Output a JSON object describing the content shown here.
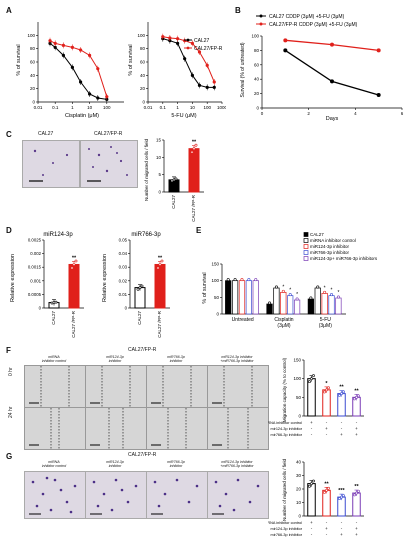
{
  "panel_labels": {
    "A": "A",
    "B": "B",
    "C": "C",
    "D": "D",
    "E": "E",
    "F": "F",
    "G": "G"
  },
  "colors": {
    "black": "#000000",
    "red": "#e0201b",
    "blue": "#3b4bd1",
    "purple": "#7a3bb5",
    "gray": "#888888"
  },
  "panelA": {
    "left": {
      "ylabel": "% of survival",
      "xlabel": "Cisplatin (μM)",
      "yticks": [
        "0",
        "20",
        "40",
        "60",
        "80",
        "100"
      ],
      "xticks": [
        "0.01",
        "0.1",
        "1",
        "10",
        "100"
      ]
    },
    "right": {
      "ylabel": "% of survival",
      "xlabel": "5-FU (μM)",
      "yticks": [
        "0",
        "20",
        "40",
        "60",
        "80",
        "100"
      ],
      "xticks": [
        "0.01",
        "0.1",
        "1",
        "10",
        "100",
        "1000"
      ],
      "legend": [
        {
          "label": "CAL27",
          "color": "#000000"
        },
        {
          "label": "CAL27/FP-R",
          "color": "#e0201b"
        }
      ]
    }
  },
  "chart_data": [
    {
      "type": "line",
      "panel": "A-left",
      "xlabel": "Cisplatin (μM)",
      "ylabel": "% of survival",
      "xscale": "log",
      "xlim": [
        0.01,
        1000
      ],
      "ylim": [
        0,
        120
      ],
      "series": [
        {
          "name": "CAL27",
          "color": "#000000",
          "x": [
            0.05,
            0.1,
            0.3,
            1,
            3,
            10,
            30,
            100
          ],
          "y": [
            88,
            82,
            70,
            52,
            30,
            12,
            6,
            4
          ]
        },
        {
          "name": "CAL27/FP-R",
          "color": "#e0201b",
          "x": [
            0.05,
            0.1,
            0.3,
            1,
            3,
            10,
            30,
            100
          ],
          "y": [
            92,
            88,
            85,
            82,
            78,
            70,
            50,
            8
          ]
        }
      ]
    },
    {
      "type": "line",
      "panel": "A-right",
      "xlabel": "5-FU (μM)",
      "ylabel": "% of survival",
      "xscale": "log",
      "xlim": [
        0.01,
        1000
      ],
      "ylim": [
        0,
        120
      ],
      "series": [
        {
          "name": "CAL27",
          "color": "#000000",
          "x": [
            0.1,
            0.3,
            1,
            3,
            10,
            30,
            100,
            300
          ],
          "y": [
            95,
            92,
            88,
            65,
            40,
            25,
            22,
            22
          ]
        },
        {
          "name": "CAL27/FP-R",
          "color": "#e0201b",
          "x": [
            0.1,
            0.3,
            1,
            3,
            10,
            30,
            100,
            300
          ],
          "y": [
            98,
            96,
            95,
            92,
            88,
            75,
            55,
            30
          ]
        }
      ]
    },
    {
      "type": "line",
      "panel": "B",
      "xlabel": "Days",
      "ylabel": "Survival (% of untreated)",
      "xlim": [
        0,
        6
      ],
      "ylim": [
        0,
        100
      ],
      "xticks": [
        "0",
        "2",
        "4",
        "6"
      ],
      "yticks": [
        "0",
        "20",
        "40",
        "60",
        "80",
        "100"
      ],
      "series": [
        {
          "name": "CAL27 CDDP (3μM) +5-FU (3μM)",
          "color": "#000000",
          "x": [
            1,
            3,
            5
          ],
          "y": [
            80,
            37,
            18
          ]
        },
        {
          "name": "CAL27/FP-R CDDP (3μM) +5-FU (3μM)",
          "color": "#e0201b",
          "x": [
            1,
            3,
            5
          ],
          "y": [
            94,
            88,
            80
          ]
        }
      ]
    },
    {
      "type": "bar",
      "panel": "C",
      "ylabel": "Number of migrated cells / field",
      "ylim": [
        0,
        15
      ],
      "yticks": [
        "0",
        "5",
        "10",
        "15"
      ],
      "categories": [
        "CAL27",
        "CAL27 /FP-R"
      ],
      "values": [
        3.5,
        12.5
      ],
      "sig": [
        "",
        "**"
      ]
    },
    {
      "type": "bar",
      "panel": "D-left",
      "title": "miR124-3p",
      "ylabel": "Relative expression",
      "ylim": [
        0,
        0.0025
      ],
      "yticks": [
        "0",
        "0.0005",
        "0.001",
        "0.0015",
        "0.002",
        "0.0025"
      ],
      "categories": [
        "CAL27",
        "CAL27 /FP-R"
      ],
      "values": [
        0.0002,
        0.0016
      ],
      "sig": [
        "",
        "**"
      ]
    },
    {
      "type": "bar",
      "panel": "D-right",
      "title": "miR766-3p",
      "ylabel": "Relative expression",
      "ylim": [
        0,
        0.05
      ],
      "yticks": [
        "0",
        "0.01",
        "0.02",
        "0.03",
        "0.04",
        "0.05"
      ],
      "categories": [
        "CAL27",
        "CAL27 /FP-R"
      ],
      "values": [
        0.015,
        0.032
      ],
      "sig": [
        "",
        "**"
      ]
    },
    {
      "type": "bar",
      "panel": "E",
      "ylabel": "% of survival",
      "ylim": [
        0,
        150
      ],
      "yticks": [
        "0",
        "50",
        "100",
        "150"
      ],
      "categories": [
        "Untreated",
        "Cisplatin (3μM)",
        "5-FU (3μM)"
      ],
      "series": [
        {
          "name": "CAL27",
          "color": "#000000",
          "fill": "#000000",
          "values": [
            100,
            30,
            45
          ]
        },
        {
          "name": "miRNA inhibitor control",
          "color": "#000000",
          "fill": "#ffffff",
          "values": [
            100,
            78,
            78
          ]
        },
        {
          "name": "miR124-3p inhibitor",
          "color": "#e0201b",
          "fill": "#ffffff",
          "values": [
            100,
            65,
            62
          ]
        },
        {
          "name": "miR766-3p inhibitor",
          "color": "#3b4bd1",
          "fill": "#ffffff",
          "values": [
            100,
            55,
            55
          ]
        },
        {
          "name": "miR124-3p+ miR766-3p inhibitors",
          "color": "#7a3bb5",
          "fill": "#ffffff",
          "values": [
            100,
            42,
            48
          ]
        }
      ],
      "sig": [
        [
          "",
          "",
          "",
          "",
          ""
        ],
        [
          "",
          "",
          "*",
          "*",
          "*"
        ],
        [
          "",
          "",
          "*",
          "*",
          "*"
        ]
      ]
    },
    {
      "type": "bar",
      "panel": "F",
      "ylabel": "Migration capacity (% to control)",
      "ylim": [
        0,
        150
      ],
      "yticks": [
        "0",
        "50",
        "100",
        "150"
      ],
      "categories": [
        "1",
        "2",
        "3",
        "4"
      ],
      "values": [
        100,
        70,
        60,
        50
      ],
      "colors": [
        "#000000",
        "#e0201b",
        "#3b4bd1",
        "#7a3bb5"
      ],
      "sig": [
        "",
        "*",
        "**",
        "**"
      ]
    },
    {
      "type": "bar",
      "panel": "G",
      "ylabel": "Number of migrated cells / field",
      "ylim": [
        0,
        40
      ],
      "yticks": [
        "0",
        "10",
        "20",
        "30",
        "40"
      ],
      "categories": [
        "1",
        "2",
        "3",
        "4"
      ],
      "values": [
        24,
        19,
        14,
        17
      ],
      "colors": [
        "#000000",
        "#e0201b",
        "#3b4bd1",
        "#7a3bb5"
      ],
      "sig": [
        "",
        "**",
        "***",
        "**"
      ]
    }
  ],
  "panelB": {
    "ylabel": "Survival (% of untreated)",
    "xlabel": "Days",
    "yticks": [
      "0",
      "20",
      "40",
      "60",
      "80",
      "100"
    ],
    "xticks": [
      "0",
      "2",
      "4",
      "6"
    ],
    "legend": [
      {
        "label": "CAL27 CDDP (3μM) +5-FU (3μM)",
        "color": "#000000"
      },
      {
        "label": "CAL27/FP-R CDDP (3μM) +5-FU (3μM)",
        "color": "#e0201b"
      }
    ]
  },
  "panelC": {
    "img_titles": [
      "CAL27",
      "CAL27/FP-R"
    ],
    "ylabel": "Number of migrated cells / field",
    "yticks": [
      "0",
      "5",
      "10",
      "15"
    ],
    "categories": [
      "CAL27",
      "CAL27 /FP-R"
    ],
    "sig": "**"
  },
  "panelD": {
    "left": {
      "title": "miR124-3p",
      "ylabel": "Relative expression",
      "yticks": [
        "0",
        "0.0005",
        "0.001",
        "0.0015",
        "0.002",
        "0.0025"
      ],
      "categories": [
        "CAL27",
        "CAL27 /FP-R"
      ],
      "sig": "**"
    },
    "right": {
      "title": "miR766-3p",
      "ylabel": "Relative expression",
      "yticks": [
        "0",
        "0.01",
        "0.02",
        "0.03",
        "0.04",
        "0.05"
      ],
      "categories": [
        "CAL27",
        "CAL27 /FP-R"
      ],
      "sig": "**"
    }
  },
  "panelE": {
    "ylabel": "% of survival",
    "yticks": [
      "0",
      "50",
      "100",
      "150"
    ],
    "groups": [
      "Untreated",
      "Cisplatin\n(3μM)",
      "5-FU\n(3μM)"
    ],
    "legend": [
      {
        "label": "CAL27",
        "color": "#000000",
        "fill": "#000000"
      },
      {
        "label": "miRNA inhibitor control",
        "color": "#000000",
        "fill": "#ffffff"
      },
      {
        "label": "miR124-3p inhibitor",
        "color": "#e0201b",
        "fill": "#ffffff"
      },
      {
        "label": "miR766-3p inhibitor",
        "color": "#3b4bd1",
        "fill": "#ffffff"
      },
      {
        "label": "miR124-3p+ miR766-3p inhibitors",
        "color": "#7a3bb5",
        "fill": "#ffffff"
      }
    ]
  },
  "panelF": {
    "header": "CAL27/FP-R",
    "columns": [
      "miRNA\ninhibitor control",
      "miR124-3p\ninhibitor",
      "miR766-3p\ninhibitor",
      "miR124-3p inhibitor\n+miR766-3p inhibitor"
    ],
    "rows": [
      "0 hr",
      "24 hr"
    ],
    "ylabel": "Migration capacity (% to control)",
    "yticks": [
      "0",
      "50",
      "100",
      "150"
    ],
    "conditions": [
      {
        "label": "miRNA inhibitor control",
        "marks": [
          "+",
          "-",
          "-",
          "-"
        ]
      },
      {
        "label": "mir124-3p inhibitor",
        "marks": [
          "-",
          "+",
          "-",
          "+"
        ]
      },
      {
        "label": "mir766-3p inhibitor",
        "marks": [
          "-",
          "-",
          "+",
          "+"
        ]
      }
    ]
  },
  "panelG": {
    "header": "CAL27/FP-R",
    "columns": [
      "miRNA\ninhibitor control",
      "miR124-3p\ninhibitor",
      "miR766-3p\ninhibitor",
      "miR124-3p inhibitor\n+miR766-3p inhibitor"
    ],
    "ylabel": "Number of migrated cells / field",
    "yticks": [
      "0",
      "10",
      "20",
      "30",
      "40"
    ],
    "conditions": [
      {
        "label": "miRNA inhibitor control",
        "marks": [
          "+",
          "-",
          "-",
          "-"
        ]
      },
      {
        "label": "mir124-3p inhibitor",
        "marks": [
          "-",
          "+",
          "-",
          "+"
        ]
      },
      {
        "label": "mir766-3p inhibitor",
        "marks": [
          "-",
          "-",
          "+",
          "+"
        ]
      }
    ]
  }
}
